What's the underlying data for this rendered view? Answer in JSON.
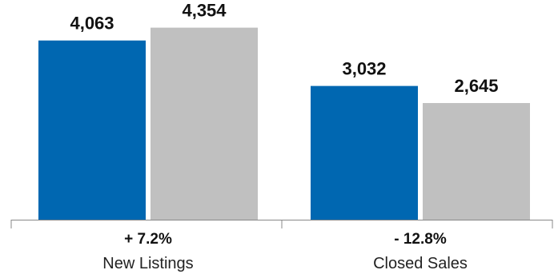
{
  "chart_data": {
    "type": "bar",
    "categories": [
      "New Listings",
      "Closed Sales"
    ],
    "changes": [
      "+ 7.2%",
      "- 12.8%"
    ],
    "series": [
      {
        "values": [
          4063,
          3032
        ],
        "value_labels": [
          "4,063",
          "3,032"
        ],
        "color": "#0067b1"
      },
      {
        "values": [
          4354,
          2645
        ],
        "value_labels": [
          "4,354",
          "2,645"
        ],
        "color": "#c0c0c0"
      }
    ],
    "ylim": [
      0,
      4800
    ],
    "grid": false,
    "legend": "none"
  }
}
